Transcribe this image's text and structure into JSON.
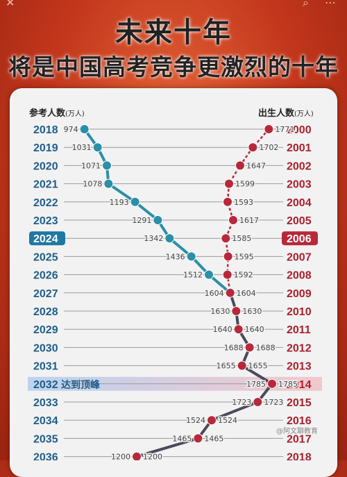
{
  "header": {
    "title_line1": "未来十年",
    "title_line2": "将是中国高考竞争更激烈的十年"
  },
  "watermark": "@阿文聊教育",
  "colors": {
    "exam_line": "#2b8fa8",
    "birth_line": "#b8283a",
    "converged_line": "#4a4a5a",
    "year_left": "#1e5e8a",
    "year_right": "#a8202c",
    "highlight_left_bg": "#1f78a3",
    "highlight_right_bg": "#b8283a"
  },
  "chart_data": {
    "type": "line",
    "left_axis_title": "参考人数",
    "left_axis_unit": "(万人)",
    "right_axis_title": "出生人数",
    "right_axis_unit": "(万人)",
    "exam_years": [
      "2018",
      "2019",
      "2020",
      "2021",
      "2022",
      "2023",
      "2024",
      "2025",
      "2026",
      "2027",
      "2028",
      "2029",
      "2030",
      "2031",
      "2032",
      "2033",
      "2034",
      "2035",
      "2036"
    ],
    "birth_years": [
      "2000",
      "2001",
      "2002",
      "2003",
      "2004",
      "2005",
      "2006",
      "2007",
      "2008",
      "2009",
      "2010",
      "2011",
      "2012",
      "2013",
      "2014",
      "2015",
      "2016",
      "2017",
      "2018"
    ],
    "x_range": [
      900,
      1800
    ],
    "series": [
      {
        "name": "参考人数",
        "values": [
          974,
          1031,
          1071,
          1078,
          1193,
          1291,
          1342,
          1436,
          1512,
          1604,
          1630,
          1640,
          1688,
          1655,
          1785,
          1723,
          1524,
          1465,
          1200
        ]
      },
      {
        "name": "出生人数",
        "values": [
          1771,
          1702,
          1647,
          1599,
          1593,
          1617,
          1585,
          1595,
          1592,
          1604,
          1630,
          1640,
          1688,
          1655,
          1785,
          1723,
          1524,
          1465,
          1200
        ]
      }
    ],
    "highlight_rows": [
      {
        "index": 6,
        "style": "boxed"
      },
      {
        "index": 14,
        "style": "band",
        "label": "达到顶峰"
      }
    ]
  }
}
